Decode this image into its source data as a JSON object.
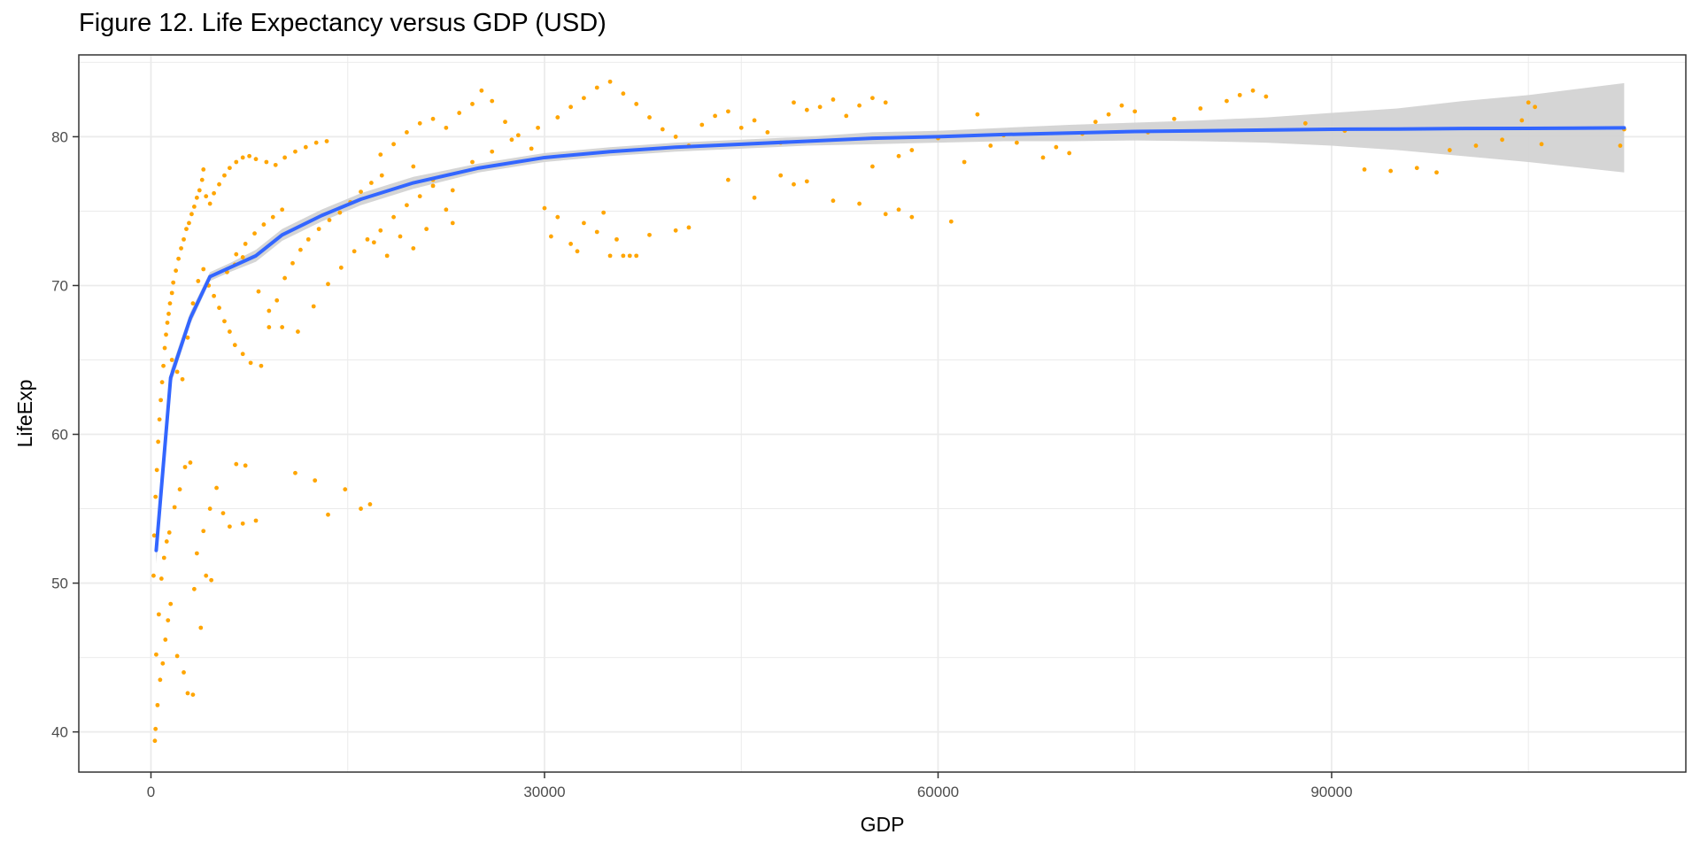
{
  "chart_data": {
    "type": "scatter",
    "title": "Figure 12. Life Expectancy versus GDP (USD)",
    "xlabel": "GDP",
    "ylabel": "LifeExp",
    "xlim": [
      -5500,
      117000
    ],
    "ylim": [
      37.3,
      85.5
    ],
    "x_ticks": [
      0,
      30000,
      60000,
      90000
    ],
    "x_tick_labels": [
      "0",
      "30000",
      "60000",
      "90000"
    ],
    "y_ticks": [
      40,
      50,
      60,
      70,
      80
    ],
    "y_tick_labels": [
      "40",
      "50",
      "60",
      "70",
      "80"
    ],
    "grid": true,
    "legend": "none",
    "colors": {
      "points": "#FFA500",
      "smooth_line": "#3366FF",
      "confidence_band": "#D3D3D3",
      "grid": "#EBEBEB",
      "panel_border": "#333333"
    },
    "series": [
      {
        "type": "scatter",
        "points": [
          [
            300,
            39.4
          ],
          [
            350,
            40.2
          ],
          [
            500,
            41.8
          ],
          [
            700,
            43.5
          ],
          [
            900,
            44.6
          ],
          [
            1100,
            46.2
          ],
          [
            1300,
            47.5
          ],
          [
            1500,
            48.6
          ],
          [
            2000,
            45.1
          ],
          [
            2500,
            44.0
          ],
          [
            2800,
            42.6
          ],
          [
            3200,
            42.5
          ],
          [
            400,
            45.2
          ],
          [
            600,
            47.9
          ],
          [
            800,
            50.3
          ],
          [
            1000,
            51.7
          ],
          [
            1200,
            52.8
          ],
          [
            1400,
            53.4
          ],
          [
            1800,
            55.1
          ],
          [
            2200,
            56.3
          ],
          [
            2600,
            57.8
          ],
          [
            3000,
            58.1
          ],
          [
            3500,
            52.0
          ],
          [
            4000,
            53.5
          ],
          [
            4500,
            55.0
          ],
          [
            5000,
            56.4
          ],
          [
            5500,
            54.7
          ],
          [
            6000,
            53.8
          ],
          [
            7000,
            54.0
          ],
          [
            8000,
            54.2
          ],
          [
            6500,
            58.0
          ],
          [
            7200,
            57.9
          ],
          [
            3800,
            47.0
          ],
          [
            3300,
            49.6
          ],
          [
            4200,
            50.5
          ],
          [
            4600,
            50.2
          ],
          [
            11000,
            57.4
          ],
          [
            12500,
            56.9
          ],
          [
            13500,
            54.6
          ],
          [
            14800,
            56.3
          ],
          [
            16000,
            55.0
          ],
          [
            16700,
            55.3
          ],
          [
            200,
            50.5
          ],
          [
            250,
            53.2
          ],
          [
            350,
            55.8
          ],
          [
            450,
            57.6
          ],
          [
            550,
            59.5
          ],
          [
            650,
            61.0
          ],
          [
            750,
            62.3
          ],
          [
            850,
            63.5
          ],
          [
            950,
            64.6
          ],
          [
            1050,
            65.8
          ],
          [
            1150,
            66.7
          ],
          [
            1250,
            67.5
          ],
          [
            1350,
            68.1
          ],
          [
            1450,
            68.8
          ],
          [
            1600,
            69.5
          ],
          [
            1700,
            70.2
          ],
          [
            1900,
            71.0
          ],
          [
            2100,
            71.8
          ],
          [
            2300,
            72.5
          ],
          [
            2500,
            73.1
          ],
          [
            2700,
            73.8
          ],
          [
            2900,
            74.2
          ],
          [
            3100,
            74.8
          ],
          [
            3300,
            75.3
          ],
          [
            3500,
            75.9
          ],
          [
            3700,
            76.4
          ],
          [
            3900,
            77.1
          ],
          [
            4000,
            77.8
          ],
          [
            4200,
            76.0
          ],
          [
            4500,
            75.5
          ],
          [
            4800,
            76.2
          ],
          [
            5200,
            76.8
          ],
          [
            5600,
            77.4
          ],
          [
            6000,
            77.9
          ],
          [
            6500,
            78.3
          ],
          [
            7000,
            78.6
          ],
          [
            7500,
            78.7
          ],
          [
            8000,
            78.5
          ],
          [
            8800,
            78.3
          ],
          [
            9500,
            78.1
          ],
          [
            10200,
            78.6
          ],
          [
            11000,
            79.0
          ],
          [
            11800,
            79.3
          ],
          [
            12600,
            79.6
          ],
          [
            13400,
            79.7
          ],
          [
            1600,
            65.0
          ],
          [
            2000,
            64.2
          ],
          [
            2400,
            63.7
          ],
          [
            2800,
            66.5
          ],
          [
            3200,
            68.8
          ],
          [
            3600,
            70.3
          ],
          [
            4000,
            71.1
          ],
          [
            4400,
            70.0
          ],
          [
            4800,
            69.3
          ],
          [
            5200,
            68.5
          ],
          [
            5600,
            67.6
          ],
          [
            6000,
            66.9
          ],
          [
            6400,
            66.0
          ],
          [
            7000,
            65.4
          ],
          [
            7600,
            64.8
          ],
          [
            8400,
            64.6
          ],
          [
            9000,
            67.2
          ],
          [
            9600,
            69.0
          ],
          [
            10200,
            70.5
          ],
          [
            10800,
            71.5
          ],
          [
            11400,
            72.4
          ],
          [
            12000,
            73.1
          ],
          [
            12800,
            73.8
          ],
          [
            13600,
            74.4
          ],
          [
            14400,
            74.9
          ],
          [
            15200,
            75.6
          ],
          [
            16000,
            76.3
          ],
          [
            16800,
            76.9
          ],
          [
            17600,
            77.4
          ],
          [
            6500,
            72.1
          ],
          [
            7200,
            72.8
          ],
          [
            7900,
            73.5
          ],
          [
            8600,
            74.1
          ],
          [
            9300,
            74.6
          ],
          [
            10000,
            75.1
          ],
          [
            5800,
            70.9
          ],
          [
            6400,
            71.4
          ],
          [
            7000,
            71.9
          ],
          [
            8200,
            69.6
          ],
          [
            9000,
            68.3
          ],
          [
            10000,
            67.2
          ],
          [
            11200,
            66.9
          ],
          [
            12400,
            68.6
          ],
          [
            13500,
            70.1
          ],
          [
            14500,
            71.2
          ],
          [
            15500,
            72.3
          ],
          [
            16500,
            73.1
          ],
          [
            17500,
            73.7
          ],
          [
            18500,
            74.6
          ],
          [
            19500,
            75.4
          ],
          [
            20500,
            76.0
          ],
          [
            21500,
            76.7
          ],
          [
            22500,
            75.1
          ],
          [
            23000,
            74.2
          ],
          [
            17000,
            72.9
          ],
          [
            18000,
            72.0
          ],
          [
            19000,
            73.3
          ],
          [
            20000,
            72.5
          ],
          [
            21000,
            73.8
          ],
          [
            17500,
            78.8
          ],
          [
            18500,
            79.5
          ],
          [
            19500,
            80.3
          ],
          [
            20500,
            80.9
          ],
          [
            21500,
            81.2
          ],
          [
            22500,
            80.6
          ],
          [
            23500,
            81.6
          ],
          [
            24500,
            82.2
          ],
          [
            25200,
            83.1
          ],
          [
            26000,
            82.4
          ],
          [
            27000,
            81.0
          ],
          [
            28000,
            80.1
          ],
          [
            29000,
            79.2
          ],
          [
            20000,
            78.0
          ],
          [
            21500,
            77.1
          ],
          [
            23000,
            76.4
          ],
          [
            24500,
            78.3
          ],
          [
            26000,
            79.0
          ],
          [
            27500,
            79.8
          ],
          [
            29500,
            80.6
          ],
          [
            31000,
            81.3
          ],
          [
            32000,
            82.0
          ],
          [
            33000,
            82.6
          ],
          [
            34000,
            83.3
          ],
          [
            35000,
            83.7
          ],
          [
            36000,
            82.9
          ],
          [
            37000,
            82.2
          ],
          [
            38000,
            81.3
          ],
          [
            39000,
            80.5
          ],
          [
            40000,
            80.0
          ],
          [
            41000,
            79.4
          ],
          [
            42000,
            80.8
          ],
          [
            43000,
            81.4
          ],
          [
            44000,
            81.7
          ],
          [
            45000,
            80.6
          ],
          [
            46000,
            81.1
          ],
          [
            47000,
            80.3
          ],
          [
            48000,
            79.6
          ],
          [
            49000,
            82.3
          ],
          [
            50000,
            81.8
          ],
          [
            51000,
            82.0
          ],
          [
            52000,
            82.5
          ],
          [
            53000,
            81.4
          ],
          [
            54000,
            82.1
          ],
          [
            55000,
            82.6
          ],
          [
            56000,
            82.3
          ],
          [
            30000,
            75.2
          ],
          [
            30500,
            73.3
          ],
          [
            31000,
            74.6
          ],
          [
            32000,
            72.8
          ],
          [
            32500,
            72.3
          ],
          [
            33000,
            74.2
          ],
          [
            34000,
            73.6
          ],
          [
            34500,
            74.9
          ],
          [
            35000,
            72.0
          ],
          [
            35500,
            73.1
          ],
          [
            36000,
            72.0
          ],
          [
            36500,
            72.0
          ],
          [
            37000,
            72.0
          ],
          [
            38000,
            73.4
          ],
          [
            40000,
            73.7
          ],
          [
            41000,
            73.9
          ],
          [
            44000,
            77.1
          ],
          [
            46000,
            75.9
          ],
          [
            48000,
            77.4
          ],
          [
            49000,
            76.8
          ],
          [
            50000,
            77.0
          ],
          [
            52000,
            75.7
          ],
          [
            54000,
            75.5
          ],
          [
            56000,
            74.8
          ],
          [
            57000,
            75.1
          ],
          [
            58000,
            74.6
          ],
          [
            61000,
            74.3
          ],
          [
            55000,
            78.0
          ],
          [
            57000,
            78.7
          ],
          [
            58000,
            79.1
          ],
          [
            60000,
            79.9
          ],
          [
            62000,
            78.3
          ],
          [
            63000,
            81.5
          ],
          [
            64000,
            79.4
          ],
          [
            65000,
            80.1
          ],
          [
            66000,
            79.6
          ],
          [
            68000,
            78.6
          ],
          [
            69000,
            79.3
          ],
          [
            70000,
            78.9
          ],
          [
            71000,
            80.2
          ],
          [
            72000,
            81.0
          ],
          [
            73000,
            81.5
          ],
          [
            74000,
            82.1
          ],
          [
            75000,
            81.7
          ],
          [
            76000,
            80.3
          ],
          [
            78000,
            81.2
          ],
          [
            80000,
            81.9
          ],
          [
            82000,
            82.4
          ],
          [
            83000,
            82.8
          ],
          [
            84000,
            83.1
          ],
          [
            85000,
            82.7
          ],
          [
            88000,
            80.9
          ],
          [
            91000,
            80.4
          ],
          [
            92500,
            77.8
          ],
          [
            94500,
            77.7
          ],
          [
            96500,
            77.9
          ],
          [
            98000,
            77.6
          ],
          [
            99000,
            79.1
          ],
          [
            101000,
            79.4
          ],
          [
            103000,
            79.8
          ],
          [
            104500,
            81.1
          ],
          [
            105000,
            82.3
          ],
          [
            105500,
            82.0
          ],
          [
            106000,
            79.5
          ],
          [
            112000,
            79.4
          ],
          [
            112300,
            80.5
          ]
        ]
      },
      {
        "type": "line",
        "x": [
          400,
          1500,
          3000,
          4500,
          6000,
          8000,
          10000,
          13000,
          16000,
          20000,
          25000,
          30000,
          35000,
          40000,
          45000,
          50000,
          55000,
          60000,
          65000,
          70000,
          75000,
          80000,
          85000,
          90000,
          95000,
          100000,
          105000,
          112300
        ],
        "y": [
          52.2,
          63.8,
          67.8,
          70.6,
          71.2,
          72.0,
          73.4,
          74.7,
          75.8,
          76.9,
          77.9,
          78.6,
          79.0,
          79.3,
          79.5,
          79.7,
          79.9,
          80.0,
          80.15,
          80.25,
          80.35,
          80.4,
          80.45,
          80.5,
          80.52,
          80.55,
          80.56,
          80.6
        ],
        "band_lower": [
          51.3,
          63.3,
          67.4,
          70.3,
          70.9,
          71.6,
          73.0,
          74.3,
          75.4,
          76.5,
          77.6,
          78.3,
          78.7,
          79.0,
          79.2,
          79.4,
          79.5,
          79.6,
          79.7,
          79.7,
          79.75,
          79.7,
          79.6,
          79.4,
          79.1,
          78.7,
          78.3,
          77.6
        ],
        "band_upper": [
          53.1,
          64.3,
          68.2,
          70.9,
          71.5,
          72.4,
          73.8,
          75.1,
          76.2,
          77.3,
          78.2,
          78.9,
          79.3,
          79.6,
          79.8,
          80.0,
          80.3,
          80.4,
          80.6,
          80.8,
          80.95,
          81.1,
          81.3,
          81.6,
          81.9,
          82.4,
          82.8,
          83.6
        ]
      }
    ]
  }
}
